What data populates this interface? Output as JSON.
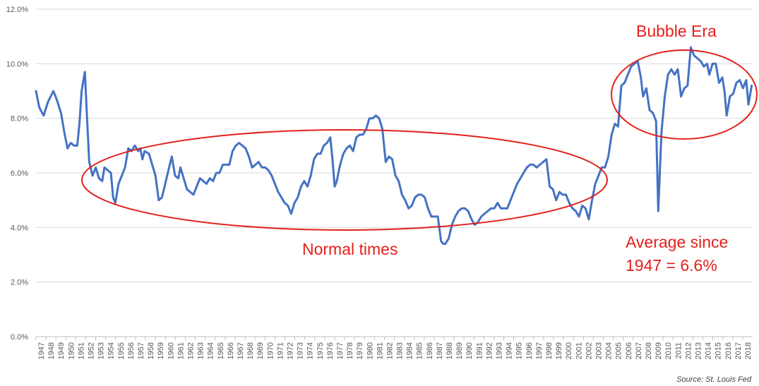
{
  "chart_data": {
    "type": "line",
    "series_color": "#4472c4",
    "annotation_color": "#e3201b",
    "grid": true,
    "ylim": [
      0,
      12
    ],
    "y_ticks": [
      "0.0%",
      "2.0%",
      "4.0%",
      "6.0%",
      "8.0%",
      "10.0%",
      "12.0%"
    ],
    "x_ticks": [
      "1947",
      "1948",
      "1949",
      "1950",
      "1951",
      "1952",
      "1953",
      "1954",
      "1955",
      "1956",
      "1957",
      "1958",
      "1959",
      "1960",
      "1961",
      "1962",
      "1963",
      "1964",
      "1965",
      "1966",
      "1967",
      "1968",
      "1969",
      "1970",
      "1971",
      "1972",
      "1973",
      "1974",
      "1975",
      "1976",
      "1977",
      "1978",
      "1979",
      "1980",
      "1981",
      "1982",
      "1983",
      "1984",
      "1985",
      "1986",
      "1987",
      "1988",
      "1989",
      "1990",
      "1991",
      "1992",
      "1993",
      "1994",
      "1995",
      "1996",
      "1997",
      "1998",
      "1999",
      "2000",
      "2001",
      "2002",
      "2003",
      "2004",
      "2005",
      "2006",
      "2007",
      "2008",
      "2009",
      "2010",
      "2011",
      "2012",
      "2013",
      "2014",
      "2015",
      "2016",
      "2017",
      "2018"
    ],
    "xlim": [
      1947,
      2018.5
    ],
    "points": [
      [
        1947.0,
        9.0
      ],
      [
        1947.3,
        8.4
      ],
      [
        1947.7,
        8.1
      ],
      [
        1948.1,
        8.6
      ],
      [
        1948.6,
        9.0
      ],
      [
        1948.9,
        8.7
      ],
      [
        1949.3,
        8.2
      ],
      [
        1949.6,
        7.5
      ],
      [
        1949.9,
        6.9
      ],
      [
        1950.2,
        7.1
      ],
      [
        1950.5,
        7.0
      ],
      [
        1950.8,
        7.0
      ],
      [
        1951.0,
        7.8
      ],
      [
        1951.2,
        9.0
      ],
      [
        1951.5,
        9.7
      ],
      [
        1951.7,
        8.0
      ],
      [
        1951.9,
        6.4
      ],
      [
        1952.2,
        5.9
      ],
      [
        1952.5,
        6.2
      ],
      [
        1952.8,
        5.8
      ],
      [
        1953.1,
        5.7
      ],
      [
        1953.3,
        6.2
      ],
      [
        1953.6,
        6.1
      ],
      [
        1953.9,
        6.0
      ],
      [
        1954.1,
        5.1
      ],
      [
        1954.3,
        4.9
      ],
      [
        1954.6,
        5.6
      ],
      [
        1954.9,
        5.9
      ],
      [
        1955.2,
        6.2
      ],
      [
        1955.5,
        6.9
      ],
      [
        1955.8,
        6.8
      ],
      [
        1956.1,
        7.0
      ],
      [
        1956.4,
        6.8
      ],
      [
        1956.6,
        6.9
      ],
      [
        1956.8,
        6.5
      ],
      [
        1957.0,
        6.8
      ],
      [
        1957.4,
        6.7
      ],
      [
        1957.7,
        6.3
      ],
      [
        1958.0,
        5.9
      ],
      [
        1958.3,
        5.0
      ],
      [
        1958.6,
        5.1
      ],
      [
        1958.9,
        5.6
      ],
      [
        1959.2,
        6.1
      ],
      [
        1959.5,
        6.6
      ],
      [
        1959.8,
        5.9
      ],
      [
        1960.1,
        5.8
      ],
      [
        1960.3,
        6.2
      ],
      [
        1960.6,
        5.8
      ],
      [
        1960.9,
        5.4
      ],
      [
        1961.2,
        5.3
      ],
      [
        1961.5,
        5.2
      ],
      [
        1961.8,
        5.5
      ],
      [
        1962.1,
        5.8
      ],
      [
        1962.4,
        5.7
      ],
      [
        1962.7,
        5.6
      ],
      [
        1963.0,
        5.8
      ],
      [
        1963.3,
        5.7
      ],
      [
        1963.6,
        6.0
      ],
      [
        1963.9,
        6.0
      ],
      [
        1964.2,
        6.3
      ],
      [
        1964.5,
        6.3
      ],
      [
        1964.8,
        6.3
      ],
      [
        1965.1,
        6.8
      ],
      [
        1965.4,
        7.0
      ],
      [
        1965.7,
        7.1
      ],
      [
        1966.0,
        7.0
      ],
      [
        1966.3,
        6.9
      ],
      [
        1966.6,
        6.6
      ],
      [
        1966.9,
        6.2
      ],
      [
        1967.2,
        6.3
      ],
      [
        1967.5,
        6.4
      ],
      [
        1967.8,
        6.2
      ],
      [
        1968.1,
        6.2
      ],
      [
        1968.4,
        6.1
      ],
      [
        1968.7,
        5.9
      ],
      [
        1969.0,
        5.6
      ],
      [
        1969.3,
        5.3
      ],
      [
        1969.6,
        5.1
      ],
      [
        1969.9,
        4.9
      ],
      [
        1970.2,
        4.8
      ],
      [
        1970.5,
        4.5
      ],
      [
        1970.8,
        4.9
      ],
      [
        1971.1,
        5.1
      ],
      [
        1971.4,
        5.5
      ],
      [
        1971.7,
        5.7
      ],
      [
        1972.0,
        5.5
      ],
      [
        1972.3,
        5.9
      ],
      [
        1972.6,
        6.5
      ],
      [
        1972.9,
        6.7
      ],
      [
        1973.2,
        6.7
      ],
      [
        1973.5,
        7.0
      ],
      [
        1973.8,
        7.1
      ],
      [
        1974.1,
        7.3
      ],
      [
        1974.3,
        6.5
      ],
      [
        1974.5,
        5.5
      ],
      [
        1974.7,
        5.7
      ],
      [
        1975.0,
        6.3
      ],
      [
        1975.3,
        6.7
      ],
      [
        1975.6,
        6.9
      ],
      [
        1975.9,
        7.0
      ],
      [
        1976.2,
        6.8
      ],
      [
        1976.5,
        7.3
      ],
      [
        1976.8,
        7.4
      ],
      [
        1977.1,
        7.4
      ],
      [
        1977.4,
        7.6
      ],
      [
        1977.7,
        8.0
      ],
      [
        1978.0,
        8.0
      ],
      [
        1978.3,
        8.1
      ],
      [
        1978.6,
        8.0
      ],
      [
        1978.9,
        7.6
      ],
      [
        1979.2,
        6.4
      ],
      [
        1979.5,
        6.6
      ],
      [
        1979.8,
        6.5
      ],
      [
        1980.1,
        5.9
      ],
      [
        1980.4,
        5.7
      ],
      [
        1980.7,
        5.2
      ],
      [
        1981.0,
        5.0
      ],
      [
        1981.3,
        4.7
      ],
      [
        1981.6,
        4.8
      ],
      [
        1981.9,
        5.1
      ],
      [
        1982.2,
        5.2
      ],
      [
        1982.5,
        5.2
      ],
      [
        1982.8,
        5.1
      ],
      [
        1983.1,
        4.7
      ],
      [
        1983.4,
        4.4
      ],
      [
        1983.7,
        4.4
      ],
      [
        1984.0,
        4.4
      ],
      [
        1984.3,
        3.5
      ],
      [
        1984.5,
        3.4
      ],
      [
        1984.7,
        3.4
      ],
      [
        1985.0,
        3.6
      ],
      [
        1985.3,
        4.1
      ],
      [
        1985.6,
        4.4
      ],
      [
        1985.9,
        4.6
      ],
      [
        1986.2,
        4.7
      ],
      [
        1986.5,
        4.7
      ],
      [
        1986.8,
        4.6
      ],
      [
        1987.1,
        4.3
      ],
      [
        1987.4,
        4.1
      ],
      [
        1987.7,
        4.2
      ],
      [
        1988.0,
        4.4
      ],
      [
        1988.3,
        4.5
      ],
      [
        1988.6,
        4.6
      ],
      [
        1988.9,
        4.7
      ],
      [
        1989.2,
        4.7
      ],
      [
        1989.5,
        4.9
      ],
      [
        1989.8,
        4.7
      ],
      [
        1990.1,
        4.7
      ],
      [
        1990.4,
        4.7
      ],
      [
        1990.7,
        5.0
      ],
      [
        1991.0,
        5.3
      ],
      [
        1991.3,
        5.6
      ],
      [
        1991.6,
        5.8
      ],
      [
        1991.9,
        6.0
      ],
      [
        1992.2,
        6.2
      ],
      [
        1992.5,
        6.3
      ],
      [
        1992.8,
        6.3
      ],
      [
        1993.1,
        6.2
      ],
      [
        1993.4,
        6.3
      ],
      [
        1993.7,
        6.4
      ],
      [
        1994.0,
        6.5
      ],
      [
        1994.3,
        5.5
      ],
      [
        1994.6,
        5.4
      ],
      [
        1994.9,
        5.0
      ],
      [
        1995.2,
        5.3
      ],
      [
        1995.5,
        5.2
      ],
      [
        1995.8,
        5.2
      ],
      [
        1996.1,
        4.9
      ],
      [
        1996.4,
        4.7
      ],
      [
        1996.7,
        4.6
      ],
      [
        1997.0,
        4.4
      ],
      [
        1997.3,
        4.8
      ],
      [
        1997.6,
        4.7
      ],
      [
        1997.9,
        4.3
      ],
      [
        1998.2,
        5.0
      ],
      [
        1998.5,
        5.6
      ],
      [
        1998.8,
        5.9
      ],
      [
        1999.1,
        6.2
      ],
      [
        1999.4,
        6.2
      ],
      [
        1999.7,
        6.6
      ],
      [
        2000.0,
        7.4
      ],
      [
        2000.3,
        7.8
      ],
      [
        2000.6,
        7.7
      ],
      [
        2000.9,
        9.2
      ],
      [
        2001.2,
        9.3
      ],
      [
        2001.5,
        9.6
      ],
      [
        2001.8,
        9.9
      ],
      [
        2002.1,
        10.0
      ],
      [
        2002.4,
        10.1
      ],
      [
        2002.7,
        9.5
      ],
      [
        2002.9,
        8.8
      ],
      [
        2003.2,
        9.1
      ],
      [
        2003.5,
        8.3
      ],
      [
        2003.8,
        8.2
      ],
      [
        2004.1,
        7.9
      ],
      [
        2004.3,
        4.6
      ],
      [
        2004.6,
        7.5
      ],
      [
        2004.9,
        8.8
      ],
      [
        2005.2,
        9.6
      ],
      [
        2005.5,
        9.8
      ],
      [
        2005.8,
        9.6
      ],
      [
        2006.1,
        9.8
      ],
      [
        2006.4,
        8.8
      ],
      [
        2006.7,
        9.1
      ],
      [
        2007.0,
        9.2
      ],
      [
        2007.3,
        10.6
      ],
      [
        2007.6,
        10.3
      ],
      [
        2007.9,
        10.2
      ],
      [
        2008.2,
        10.1
      ],
      [
        2008.5,
        9.9
      ],
      [
        2008.8,
        10.0
      ],
      [
        2009.0,
        9.6
      ],
      [
        2009.3,
        10.0
      ],
      [
        2009.6,
        10.0
      ],
      [
        2009.9,
        9.3
      ],
      [
        2010.2,
        9.5
      ],
      [
        2010.4,
        9.0
      ],
      [
        2010.6,
        8.1
      ],
      [
        2010.9,
        8.8
      ],
      [
        2011.2,
        8.9
      ],
      [
        2011.5,
        9.3
      ],
      [
        2011.8,
        9.4
      ],
      [
        2012.1,
        9.1
      ],
      [
        2012.4,
        9.4
      ],
      [
        2012.6,
        8.5
      ],
      [
        2012.9,
        9.2
      ]
    ],
    "x_scale_note_omitted": true
  },
  "annotations": {
    "bubble_label": "Bubble Era",
    "normal_label": "Normal times",
    "average_line1": "Average since",
    "average_line2": "1947 = 6.6%"
  },
  "source_text": "Source: St. Louis Fed"
}
